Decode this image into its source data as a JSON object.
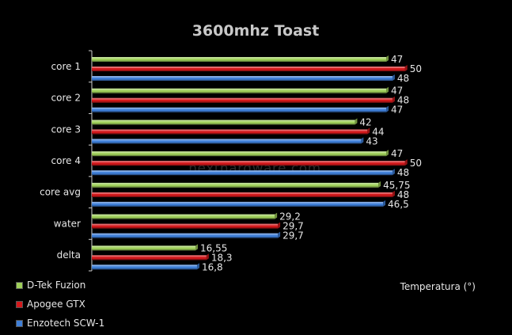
{
  "chart_data": {
    "type": "bar",
    "orientation": "horizontal",
    "title": "3600mhz Toast",
    "xlabel": "Temperatura (°)",
    "ylabel": "",
    "categories": [
      "core 1",
      "core 2",
      "core 3",
      "core 4",
      "core avg",
      "water",
      "delta"
    ],
    "series": [
      {
        "name": "D-Tek Fuzion",
        "color": "#9fcf5a",
        "values": [
          47,
          47,
          42,
          47,
          45.75,
          29.2,
          16.55
        ],
        "labels": [
          "47",
          "47",
          "42",
          "47",
          "45,75",
          "29,2",
          "16,55"
        ]
      },
      {
        "name": "Apogee GTX",
        "color": "#d4191c",
        "values": [
          50,
          48,
          44,
          50,
          48,
          29.7,
          18.3
        ],
        "labels": [
          "50",
          "48",
          "44",
          "50",
          "48",
          "29,7",
          "18,3"
        ]
      },
      {
        "name": "Enzotech SCW-1",
        "color": "#3f7fd8",
        "values": [
          48,
          47,
          43,
          48,
          46.5,
          29.7,
          16.8
        ],
        "labels": [
          "48",
          "47",
          "43",
          "48",
          "46,5",
          "29,7",
          "16,8"
        ]
      }
    ],
    "xlim": [
      0,
      60
    ],
    "grid": false,
    "legend_position": "bottom-left",
    "watermark": "nexthardware.com"
  }
}
